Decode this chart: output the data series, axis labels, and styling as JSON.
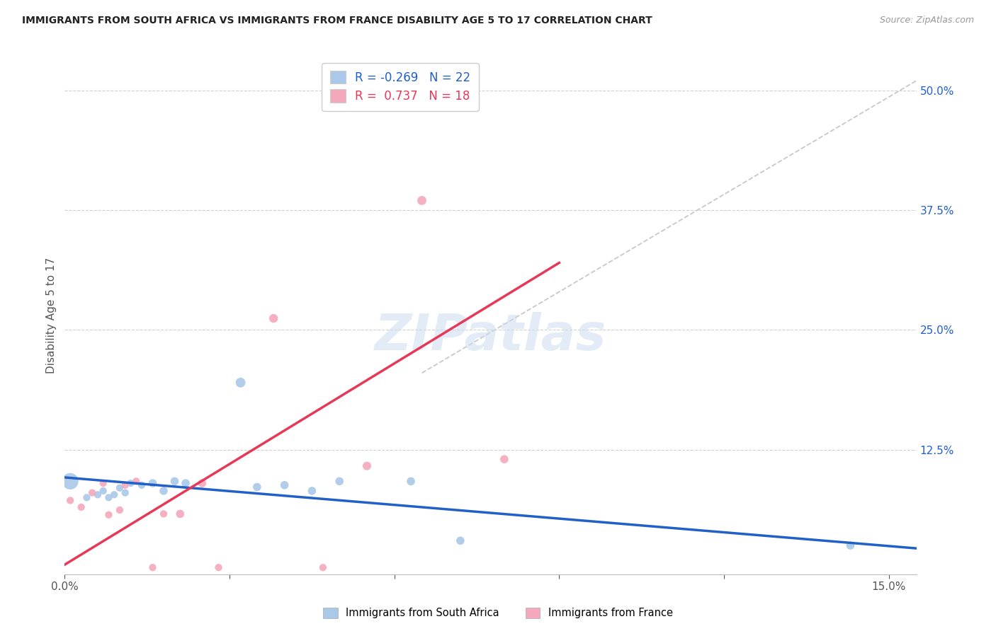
{
  "title": "IMMIGRANTS FROM SOUTH AFRICA VS IMMIGRANTS FROM FRANCE DISABILITY AGE 5 TO 17 CORRELATION CHART",
  "source": "Source: ZipAtlas.com",
  "ylabel_label": "Disability Age 5 to 17",
  "xlim": [
    0.0,
    0.155
  ],
  "ylim": [
    -0.005,
    0.535
  ],
  "xticks": [
    0.0,
    0.03,
    0.06,
    0.09,
    0.12,
    0.15
  ],
  "xticklabels": [
    "0.0%",
    "",
    "",
    "",
    "",
    "15.0%"
  ],
  "yticks_right": [
    0.0,
    0.125,
    0.25,
    0.375,
    0.5
  ],
  "ytick_labels_right": [
    "",
    "12.5%",
    "25.0%",
    "37.5%",
    "50.0%"
  ],
  "R_blue": -0.269,
  "N_blue": 22,
  "R_pink": 0.737,
  "N_pink": 18,
  "color_blue": "#aac8e8",
  "color_pink": "#f4a8bc",
  "line_blue": "#2060c8",
  "line_pink": "#e83858",
  "line_dashed_color": "#c8c8c8",
  "watermark": "ZIPatlas",
  "blue_points": [
    [
      0.001,
      0.092,
      280
    ],
    [
      0.004,
      0.075,
      55
    ],
    [
      0.006,
      0.078,
      55
    ],
    [
      0.007,
      0.082,
      55
    ],
    [
      0.008,
      0.075,
      55
    ],
    [
      0.009,
      0.078,
      55
    ],
    [
      0.01,
      0.085,
      55
    ],
    [
      0.011,
      0.08,
      55
    ],
    [
      0.012,
      0.09,
      55
    ],
    [
      0.014,
      0.088,
      55
    ],
    [
      0.016,
      0.09,
      70
    ],
    [
      0.018,
      0.082,
      70
    ],
    [
      0.02,
      0.092,
      70
    ],
    [
      0.022,
      0.09,
      70
    ],
    [
      0.032,
      0.195,
      100
    ],
    [
      0.035,
      0.086,
      70
    ],
    [
      0.04,
      0.088,
      70
    ],
    [
      0.045,
      0.082,
      70
    ],
    [
      0.05,
      0.092,
      70
    ],
    [
      0.063,
      0.092,
      70
    ],
    [
      0.072,
      0.03,
      70
    ],
    [
      0.143,
      0.025,
      70
    ]
  ],
  "pink_points": [
    [
      0.001,
      0.072,
      55
    ],
    [
      0.003,
      0.065,
      55
    ],
    [
      0.005,
      0.08,
      55
    ],
    [
      0.007,
      0.09,
      55
    ],
    [
      0.008,
      0.057,
      55
    ],
    [
      0.01,
      0.062,
      55
    ],
    [
      0.011,
      0.088,
      55
    ],
    [
      0.013,
      0.092,
      55
    ],
    [
      0.016,
      0.002,
      55
    ],
    [
      0.018,
      0.058,
      55
    ],
    [
      0.021,
      0.058,
      70
    ],
    [
      0.025,
      0.09,
      70
    ],
    [
      0.028,
      0.002,
      55
    ],
    [
      0.038,
      0.262,
      80
    ],
    [
      0.047,
      0.002,
      55
    ],
    [
      0.055,
      0.108,
      75
    ],
    [
      0.065,
      0.385,
      85
    ],
    [
      0.08,
      0.115,
      70
    ]
  ],
  "blue_line_x": [
    0.0,
    0.155
  ],
  "blue_line_y": [
    0.096,
    0.022
  ],
  "pink_line_x": [
    0.0,
    0.09
  ],
  "pink_line_y": [
    0.005,
    0.32
  ],
  "dash_line_x": [
    0.065,
    0.155
  ],
  "dash_line_y": [
    0.205,
    0.51
  ]
}
